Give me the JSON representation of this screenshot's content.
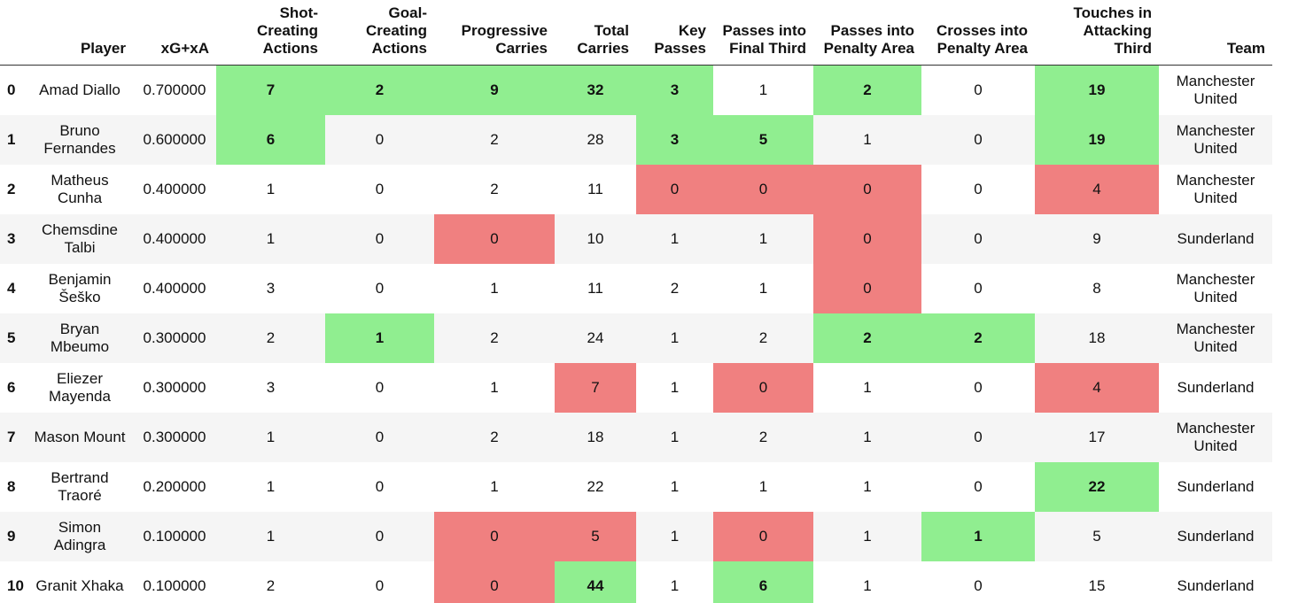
{
  "table": {
    "columns": [
      "Player",
      "xG+xA",
      "Shot-Creating Actions",
      "Goal-Creating Actions",
      "Progressive Carries",
      "Total Carries",
      "Key Passes",
      "Passes into Final Third",
      "Passes into Penalty Area",
      "Crosses into Penalty Area",
      "Touches in Attacking Third",
      "Team"
    ],
    "highlight_colors": {
      "high": "#90ee90",
      "low": "#f08080"
    },
    "rows": [
      {
        "index": 0,
        "cells": [
          "Amad Diallo",
          "0.700000",
          7,
          2,
          9,
          32,
          3,
          1,
          2,
          0,
          19,
          "Manchester United"
        ],
        "highlights": [
          null,
          null,
          "high",
          "high",
          "high",
          "high",
          "high",
          null,
          "high",
          null,
          "high",
          null
        ]
      },
      {
        "index": 1,
        "cells": [
          "Bruno Fernandes",
          "0.600000",
          6,
          0,
          2,
          28,
          3,
          5,
          1,
          0,
          19,
          "Manchester United"
        ],
        "highlights": [
          null,
          null,
          "high",
          null,
          null,
          null,
          "high",
          "high",
          null,
          null,
          "high",
          null
        ]
      },
      {
        "index": 2,
        "cells": [
          "Matheus Cunha",
          "0.400000",
          1,
          0,
          2,
          11,
          0,
          0,
          0,
          0,
          4,
          "Manchester United"
        ],
        "highlights": [
          null,
          null,
          null,
          null,
          null,
          null,
          "low",
          "low",
          "low",
          null,
          "low",
          null
        ]
      },
      {
        "index": 3,
        "cells": [
          "Chemsdine Talbi",
          "0.400000",
          1,
          0,
          0,
          10,
          1,
          1,
          0,
          0,
          9,
          "Sunderland"
        ],
        "highlights": [
          null,
          null,
          null,
          null,
          "low",
          null,
          null,
          null,
          "low",
          null,
          null,
          null
        ]
      },
      {
        "index": 4,
        "cells": [
          "Benjamin Šeško",
          "0.400000",
          3,
          0,
          1,
          11,
          2,
          1,
          0,
          0,
          8,
          "Manchester United"
        ],
        "highlights": [
          null,
          null,
          null,
          null,
          null,
          null,
          null,
          null,
          "low",
          null,
          null,
          null
        ]
      },
      {
        "index": 5,
        "cells": [
          "Bryan Mbeumo",
          "0.300000",
          2,
          1,
          2,
          24,
          1,
          2,
          2,
          2,
          18,
          "Manchester United"
        ],
        "highlights": [
          null,
          null,
          null,
          "high",
          null,
          null,
          null,
          null,
          "high",
          "high",
          null,
          null
        ]
      },
      {
        "index": 6,
        "cells": [
          "Eliezer Mayenda",
          "0.300000",
          3,
          0,
          1,
          7,
          1,
          0,
          1,
          0,
          4,
          "Sunderland"
        ],
        "highlights": [
          null,
          null,
          null,
          null,
          null,
          "low",
          null,
          "low",
          null,
          null,
          "low",
          null
        ]
      },
      {
        "index": 7,
        "cells": [
          "Mason Mount",
          "0.300000",
          1,
          0,
          2,
          18,
          1,
          2,
          1,
          0,
          17,
          "Manchester United"
        ],
        "highlights": [
          null,
          null,
          null,
          null,
          null,
          null,
          null,
          null,
          null,
          null,
          null,
          null
        ]
      },
      {
        "index": 8,
        "cells": [
          "Bertrand Traoré",
          "0.200000",
          1,
          0,
          1,
          22,
          1,
          1,
          1,
          0,
          22,
          "Sunderland"
        ],
        "highlights": [
          null,
          null,
          null,
          null,
          null,
          null,
          null,
          null,
          null,
          null,
          "high",
          null
        ]
      },
      {
        "index": 9,
        "cells": [
          "Simon Adingra",
          "0.100000",
          1,
          0,
          0,
          5,
          1,
          0,
          1,
          1,
          5,
          "Sunderland"
        ],
        "highlights": [
          null,
          null,
          null,
          null,
          "low",
          "low",
          null,
          "low",
          null,
          "high",
          null,
          null
        ]
      },
      {
        "index": 10,
        "cells": [
          "Granit Xhaka",
          "0.100000",
          2,
          0,
          0,
          44,
          1,
          6,
          1,
          0,
          15,
          "Sunderland"
        ],
        "highlights": [
          null,
          null,
          null,
          null,
          "low",
          "high",
          null,
          "high",
          null,
          null,
          null,
          null
        ]
      }
    ]
  }
}
